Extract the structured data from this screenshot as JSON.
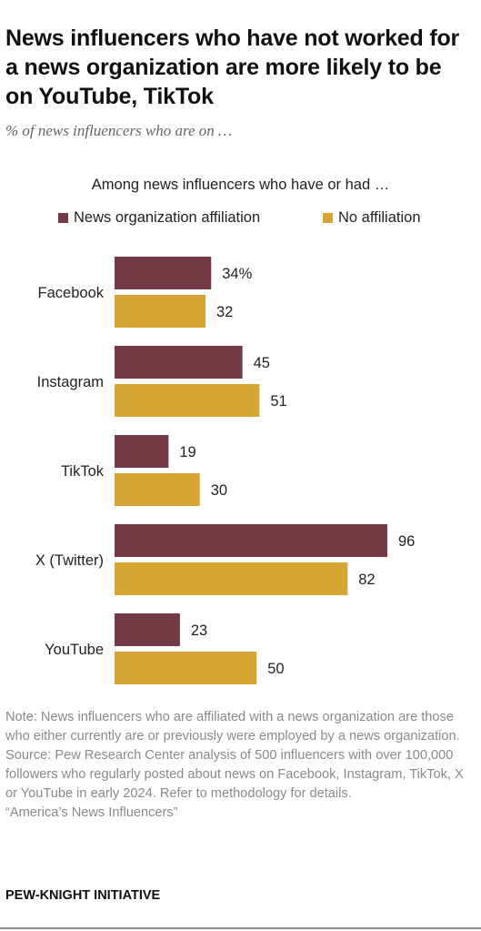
{
  "header": {
    "title": "News influencers who have not worked for a news organization are more likely to be on YouTube, TikTok",
    "subtitle": "% of news influencers who are on …"
  },
  "legend": {
    "heading": "Among news influencers who have or had …"
  },
  "chart_data": {
    "type": "bar",
    "orientation": "horizontal",
    "categories": [
      "Facebook",
      "Instagram",
      "TikTok",
      "X (Twitter)",
      "YouTube"
    ],
    "series": [
      {
        "name": "News organization affiliation",
        "color": "#743a45",
        "values": [
          34,
          45,
          19,
          96,
          23
        ]
      },
      {
        "name": "No affiliation",
        "color": "#d6a635",
        "values": [
          32,
          51,
          30,
          82,
          50
        ]
      }
    ],
    "data_labels": [
      [
        "34%",
        "45",
        "19",
        "96",
        "23"
      ],
      [
        "32",
        "51",
        "30",
        "82",
        "50"
      ]
    ],
    "xlim": [
      0,
      100
    ],
    "grid": false,
    "legend_position": "top"
  },
  "notes": {
    "note": "Note: News influencers who are affiliated with a news organization are those who either currently are or previously were employed by a news organization.",
    "source": "Source: Pew Research Center analysis of 500 influencers with over 100,000 followers who regularly posted about news on Facebook, Instagram, TikTok, X or YouTube in early 2024. Refer to methodology for details.",
    "report": "“America’s News Influencers”"
  },
  "brand": "PEW-KNIGHT INITIATIVE"
}
